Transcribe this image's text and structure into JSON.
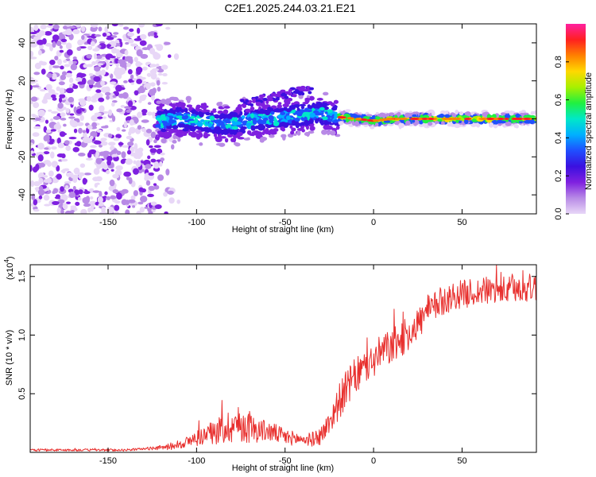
{
  "title": "C2E1.2025.244.03.21.E21",
  "colors": {
    "snr_line": "#e8302e",
    "axis": "#000000",
    "spectro_scale": [
      "#ffffff",
      "#e8d7f7",
      "#b88ae6",
      "#7f20e0",
      "#3a10e0",
      "#1f4fff",
      "#00b0ff",
      "#00e8c8",
      "#20f040",
      "#a8f000",
      "#ffd800",
      "#ff8000",
      "#ff2020",
      "#ff20a0"
    ]
  },
  "chart_data": [
    {
      "type": "heatmap",
      "title": "C2E1.2025.244.03.21.E21",
      "xlabel": "Height of straight line (km)",
      "ylabel": "Frequency (Hz)",
      "xlim": [
        -194,
        92
      ],
      "ylim": [
        -50,
        50
      ],
      "xticks": [
        -150,
        -100,
        -50,
        0,
        50
      ],
      "xtick_labels": [
        "-150",
        "-100",
        "-50",
        "0",
        "50"
      ],
      "yticks": [
        -40,
        -20,
        0,
        20,
        40
      ],
      "ytick_labels": [
        "-40",
        "-20",
        "0",
        "20",
        "40"
      ],
      "ridge": [
        {
          "x": -120,
          "f": -1.5
        },
        {
          "x": -110,
          "f": 0
        },
        {
          "x": -100,
          "f": -1
        },
        {
          "x": -90,
          "f": -2
        },
        {
          "x": -80,
          "f": -2.5
        },
        {
          "x": -70,
          "f": -1
        },
        {
          "x": -60,
          "f": 0
        },
        {
          "x": -50,
          "f": 1
        },
        {
          "x": -40,
          "f": 2
        },
        {
          "x": -30,
          "f": 3
        },
        {
          "x": -20,
          "f": 1
        },
        {
          "x": -10,
          "f": 0
        },
        {
          "x": 0,
          "f": -1
        },
        {
          "x": 10,
          "f": 0
        },
        {
          "x": 20,
          "f": 0
        },
        {
          "x": 50,
          "f": 0
        },
        {
          "x": 90,
          "f": 0
        }
      ],
      "noise_region_km": [
        -194,
        -120
      ],
      "colorbar": {
        "label": "Normalized spectral amplitude",
        "ticks": [
          0.0,
          0.2,
          0.4,
          0.6,
          0.8
        ],
        "tick_labels": [
          "0.0",
          "0.2",
          "0.4",
          "0.6",
          "0.8"
        ],
        "range": [
          0,
          1
        ]
      }
    },
    {
      "type": "line",
      "xlabel": "Height of straight line (km)",
      "ylabel": "SNR (10 * v/v)",
      "ylabel_multiplier": "(x10",
      "ylabel_exponent": "4",
      "ylabel_multiplier_close": ")",
      "xlim": [
        -194,
        92
      ],
      "ylim": [
        0,
        1.6
      ],
      "xticks": [
        -150,
        -100,
        -50,
        0,
        50
      ],
      "xtick_labels": [
        "-150",
        "-100",
        "-50",
        "0",
        "50"
      ],
      "yticks": [
        0.5,
        1.0,
        1.5
      ],
      "ytick_labels": [
        "0.5",
        "1.0",
        "1.5"
      ],
      "series": [
        {
          "name": "SNR",
          "x": [
            -194,
            -180,
            -160,
            -140,
            -130,
            -120,
            -115,
            -110,
            -105,
            -100,
            -95,
            -90,
            -85,
            -80,
            -76,
            -72,
            -68,
            -64,
            -60,
            -55,
            -50,
            -45,
            -40,
            -35,
            -30,
            -25,
            -20,
            -15,
            -10,
            -5,
            0,
            5,
            10,
            15,
            20,
            25,
            30,
            35,
            40,
            45,
            50,
            55,
            60,
            65,
            70,
            75,
            80,
            85,
            92
          ],
          "mean": [
            0.02,
            0.02,
            0.02,
            0.02,
            0.03,
            0.04,
            0.05,
            0.07,
            0.09,
            0.12,
            0.15,
            0.17,
            0.2,
            0.23,
            0.24,
            0.22,
            0.2,
            0.19,
            0.18,
            0.16,
            0.13,
            0.12,
            0.11,
            0.11,
            0.14,
            0.25,
            0.42,
            0.55,
            0.65,
            0.72,
            0.78,
            0.86,
            0.9,
            0.95,
            1.02,
            1.1,
            1.18,
            1.25,
            1.3,
            1.33,
            1.35,
            1.36,
            1.37,
            1.38,
            1.38,
            1.38,
            1.39,
            1.4,
            1.41
          ],
          "spread": [
            0.01,
            0.01,
            0.01,
            0.01,
            0.01,
            0.02,
            0.03,
            0.04,
            0.05,
            0.07,
            0.08,
            0.1,
            0.14,
            0.15,
            0.16,
            0.14,
            0.12,
            0.1,
            0.09,
            0.08,
            0.07,
            0.06,
            0.05,
            0.06,
            0.08,
            0.1,
            0.15,
            0.16,
            0.16,
            0.15,
            0.15,
            0.16,
            0.15,
            0.15,
            0.15,
            0.14,
            0.14,
            0.13,
            0.13,
            0.12,
            0.12,
            0.12,
            0.12,
            0.12,
            0.12,
            0.12,
            0.12,
            0.12,
            0.12
          ]
        }
      ]
    }
  ]
}
